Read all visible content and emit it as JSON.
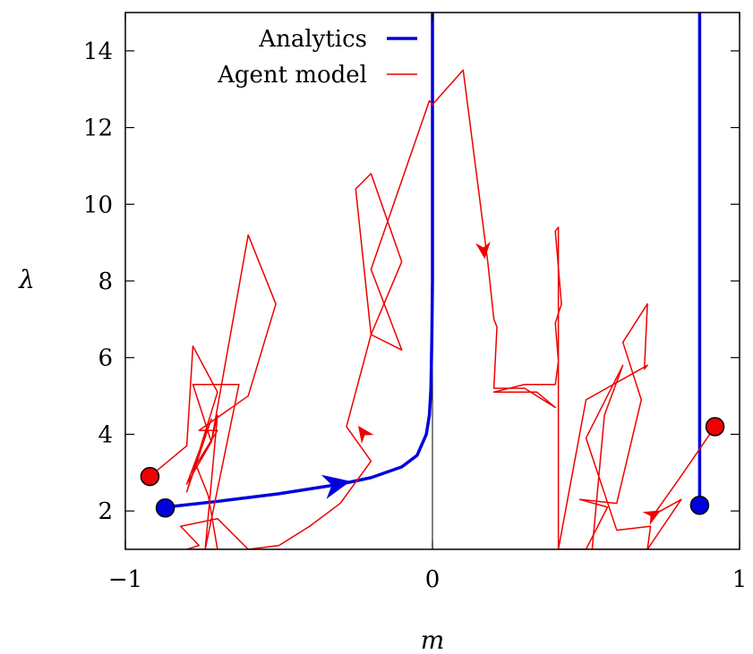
{
  "chart_data": {
    "type": "line",
    "xlabel": "m",
    "ylabel": "λ",
    "xlim": [
      -1,
      1
    ],
    "ylim": [
      1,
      15
    ],
    "x_ticks": [
      {
        "value": -1,
        "label": "−1"
      },
      {
        "value": 0,
        "label": "0"
      },
      {
        "value": 1,
        "label": "1"
      }
    ],
    "y_ticks": [
      {
        "value": 2,
        "label": "2"
      },
      {
        "value": 4,
        "label": "4"
      },
      {
        "value": 6,
        "label": "6"
      },
      {
        "value": 8,
        "label": "8"
      },
      {
        "value": 10,
        "label": "10"
      },
      {
        "value": 12,
        "label": "12"
      },
      {
        "value": 14,
        "label": "14"
      }
    ],
    "legend_placement": "top-center",
    "reference_line_x": 0,
    "series": [
      {
        "name": "Analytics",
        "color": "#0000dd",
        "branches": [
          {
            "x": [
              -0.87,
              -0.7,
              -0.5,
              -0.3,
              -0.2,
              -0.1,
              -0.05,
              -0.02,
              -0.01,
              -0.005,
              -0.002,
              0.0,
              0.0
            ],
            "y": [
              2.1,
              2.25,
              2.45,
              2.7,
              2.87,
              3.15,
              3.45,
              4.0,
              4.5,
              5.2,
              6.5,
              8.0,
              15.0
            ],
            "arrow_at": [
              -0.27,
              2.77
            ]
          },
          {
            "x": [
              0.87,
              0.87
            ],
            "y": [
              2.15,
              15.0
            ]
          }
        ],
        "start_markers": [
          [
            -0.87,
            2.08
          ],
          [
            0.87,
            2.15
          ]
        ]
      },
      {
        "name": "Agent model",
        "color": "#ee0000",
        "branches": [
          {
            "x": [
              -0.92,
              -0.8,
              -0.78,
              -0.7,
              -0.8,
              -0.72,
              -0.8,
              -0.72,
              -0.7,
              -0.74,
              -0.63,
              -0.78,
              -0.72,
              -0.6,
              -0.51,
              -0.6,
              -0.76,
              -0.7,
              -0.77,
              -0.73,
              -0.7,
              -0.8,
              -0.76,
              -0.82,
              -0.7,
              -0.6,
              -0.5,
              -0.4,
              -0.3,
              -0.2,
              -0.28,
              -0.2,
              -0.25,
              -0.2,
              -0.1,
              -0.2,
              -0.1,
              -0.2,
              -0.01,
              0.0,
              0.1,
              0.18,
              0.2,
              0.21,
              0.2,
              0.3,
              0.2,
              0.3,
              0.4,
              0.34,
              0.2,
              0.3,
              0.4,
              0.41,
              0.4,
              0.42,
              0.4,
              0.41,
              0.41,
              0.45,
              0.42,
              0.47,
              0.5
            ],
            "y": [
              2.9,
              3.7,
              6.3,
              5.1,
              2.5,
              4.4,
              2.7,
              3.8,
              4.5,
              1.0,
              5.3,
              5.3,
              3.8,
              9.2,
              7.4,
              5.0,
              4.1,
              4.1,
              3.2,
              2.4,
              1.0,
              1.0,
              1.1,
              1.6,
              1.8,
              1.0,
              1.1,
              1.6,
              2.2,
              3.3,
              4.2,
              6.6,
              10.4,
              10.8,
              8.5,
              6.6,
              6.2,
              8.3,
              12.7,
              12.6,
              13.5,
              8.5,
              7.0,
              6.8,
              5.2,
              5.2,
              5.2,
              5.2,
              4.7,
              5.1,
              5.1,
              5.3,
              5.3,
              5.9,
              6.9,
              7.4,
              9.3,
              9.4,
              1.0,
              1.0,
              1.0,
              1.0,
              1.0
            ],
            "arrow_at": [
              [
                -0.24,
                4.2
              ],
              [
                0.17,
                8.6
              ]
            ]
          },
          {
            "x": [
              0.92,
              0.8,
              0.72,
              0.81,
              0.7,
              0.71,
              0.6,
              0.5,
              0.62,
              0.56,
              0.52,
              0.53,
              0.5,
              0.57,
              0.48,
              0.6,
              0.68,
              0.62,
              0.7,
              0.69,
              0.7,
              0.5,
              0.41,
              0.5,
              0.6,
              0.7,
              0.62,
              0.58,
              0.7,
              0.71
            ],
            "y": [
              4.2,
              2.8,
              1.9,
              2.3,
              1.0,
              1.6,
              1.5,
              3.9,
              5.8,
              4.5,
              1.0,
              1.0,
              1.0,
              2.1,
              2.3,
              2.2,
              4.9,
              6.4,
              7.4,
              5.7,
              5.8,
              4.9,
              1.0,
              1.0,
              1.0,
              1.0,
              1.0,
              1.0,
              1.0,
              1.0
            ],
            "arrow_at": [
              [
                0.74,
                2.0
              ]
            ]
          }
        ],
        "start_markers": [
          [
            -0.92,
            2.9
          ],
          [
            0.92,
            4.2
          ]
        ]
      }
    ]
  }
}
